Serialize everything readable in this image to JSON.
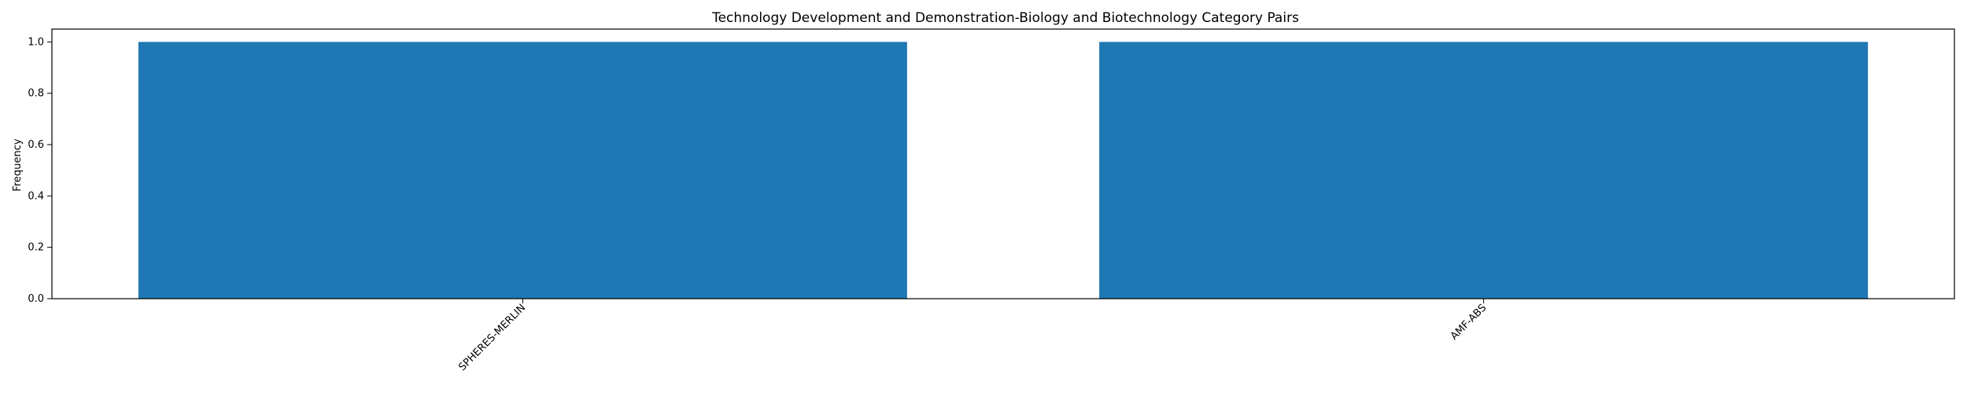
{
  "chart_data": {
    "type": "bar",
    "title": "Technology Development and Demonstration-Biology and Biotechnology Category Pairs",
    "xlabel": "",
    "ylabel": "Frequency",
    "categories": [
      "SPHERES-MERLIN",
      "AMF-ABS"
    ],
    "values": [
      1,
      1
    ],
    "ylim": [
      0,
      1.05
    ],
    "yticks": [
      "0.0",
      "0.2",
      "0.4",
      "0.6",
      "0.8",
      "1.0"
    ],
    "bar_color": "#1f77b4",
    "grid": false,
    "legend": "none",
    "xtick_rotation": 45
  }
}
